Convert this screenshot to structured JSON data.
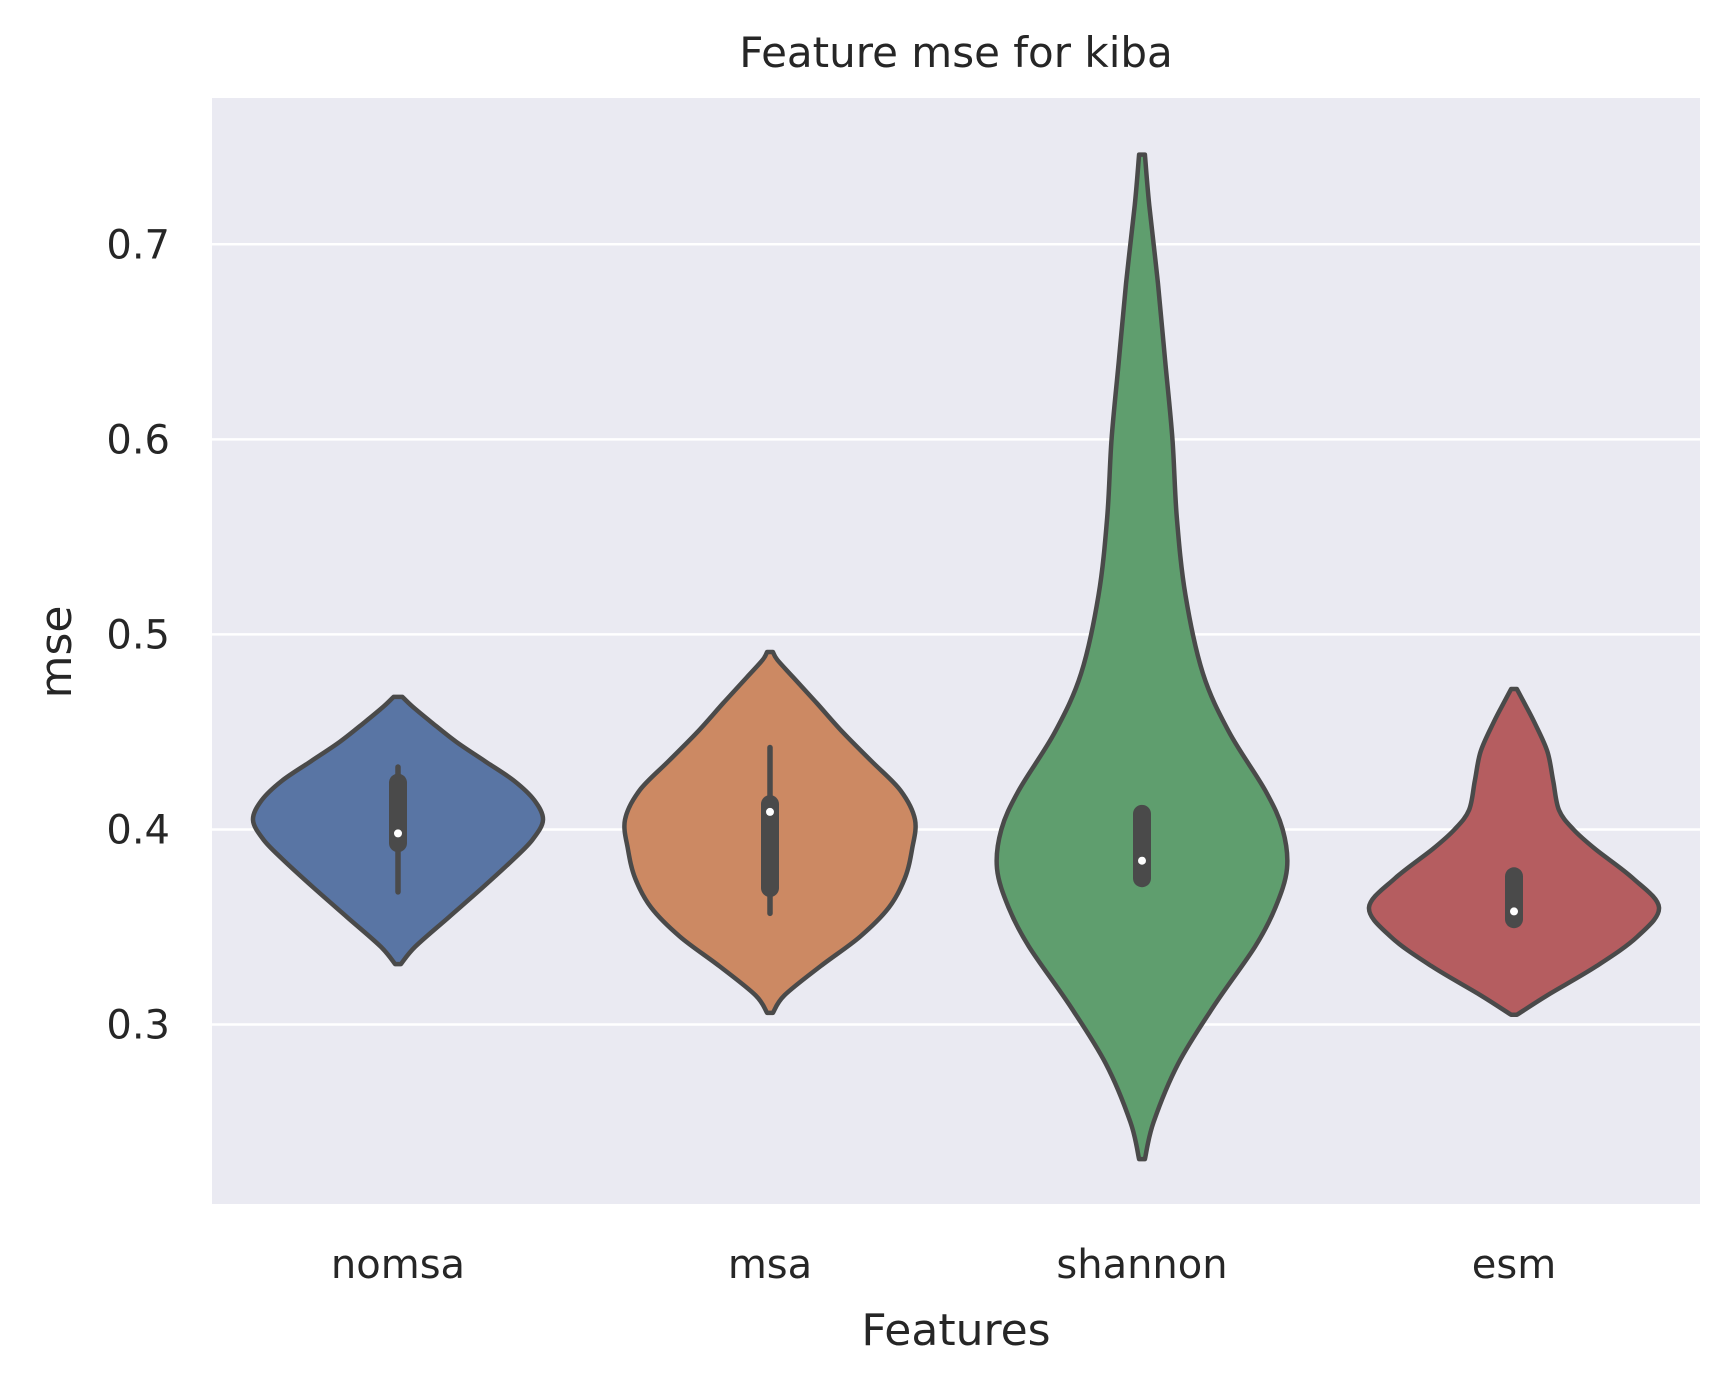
{
  "chart_data": {
    "type": "violin",
    "title": "Feature mse for kiba",
    "xlabel": "Features",
    "ylabel": "mse",
    "ylim": [
      0.208,
      0.775
    ],
    "yticks": [
      0.3,
      0.4,
      0.5,
      0.6,
      0.7
    ],
    "ytick_labels": [
      "0.3",
      "0.4",
      "0.5",
      "0.6",
      "0.7"
    ],
    "grid": true,
    "categories": [
      "nomsa",
      "msa",
      "shannon",
      "esm"
    ],
    "series": [
      {
        "category": "nomsa",
        "color": "#5975a4",
        "min": 0.331,
        "max": 0.468,
        "whisker_low": 0.368,
        "q1": 0.393,
        "median": 0.398,
        "q3": 0.424,
        "whisker_high": 0.432,
        "density": [
          [
            0.331,
            0.02
          ],
          [
            0.34,
            0.12
          ],
          [
            0.355,
            0.35
          ],
          [
            0.37,
            0.58
          ],
          [
            0.385,
            0.8
          ],
          [
            0.395,
            0.93
          ],
          [
            0.405,
            1.0
          ],
          [
            0.415,
            0.94
          ],
          [
            0.425,
            0.8
          ],
          [
            0.435,
            0.6
          ],
          [
            0.445,
            0.4
          ],
          [
            0.455,
            0.23
          ],
          [
            0.463,
            0.1
          ],
          [
            0.468,
            0.03
          ]
        ]
      },
      {
        "category": "msa",
        "color": "#cc8963",
        "min": 0.306,
        "max": 0.491,
        "whisker_low": 0.357,
        "q1": 0.37,
        "median": 0.409,
        "q3": 0.413,
        "whisker_high": 0.442,
        "density": [
          [
            0.306,
            0.02
          ],
          [
            0.315,
            0.1
          ],
          [
            0.33,
            0.35
          ],
          [
            0.345,
            0.62
          ],
          [
            0.36,
            0.82
          ],
          [
            0.375,
            0.93
          ],
          [
            0.39,
            0.98
          ],
          [
            0.405,
            1.0
          ],
          [
            0.42,
            0.9
          ],
          [
            0.435,
            0.7
          ],
          [
            0.45,
            0.5
          ],
          [
            0.465,
            0.32
          ],
          [
            0.478,
            0.16
          ],
          [
            0.487,
            0.05
          ],
          [
            0.491,
            0.02
          ]
        ]
      },
      {
        "category": "shannon",
        "color": "#5f9e6e",
        "min": 0.231,
        "max": 0.746,
        "whisker_low": 0.374,
        "q1": 0.375,
        "median": 0.384,
        "q3": 0.408,
        "whisker_high": 0.409,
        "density": [
          [
            0.231,
            0.02
          ],
          [
            0.25,
            0.08
          ],
          [
            0.28,
            0.25
          ],
          [
            0.31,
            0.5
          ],
          [
            0.34,
            0.78
          ],
          [
            0.36,
            0.92
          ],
          [
            0.38,
            1.0
          ],
          [
            0.4,
            0.97
          ],
          [
            0.42,
            0.85
          ],
          [
            0.45,
            0.6
          ],
          [
            0.48,
            0.42
          ],
          [
            0.52,
            0.3
          ],
          [
            0.56,
            0.24
          ],
          [
            0.6,
            0.21
          ],
          [
            0.64,
            0.16
          ],
          [
            0.68,
            0.11
          ],
          [
            0.72,
            0.05
          ],
          [
            0.746,
            0.02
          ]
        ]
      },
      {
        "category": "esm",
        "color": "#b55d60",
        "min": 0.305,
        "max": 0.472,
        "whisker_low": 0.351,
        "q1": 0.354,
        "median": 0.358,
        "q3": 0.376,
        "whisker_high": 0.377,
        "density": [
          [
            0.305,
            0.02
          ],
          [
            0.315,
            0.23
          ],
          [
            0.33,
            0.57
          ],
          [
            0.345,
            0.85
          ],
          [
            0.36,
            1.0
          ],
          [
            0.375,
            0.82
          ],
          [
            0.39,
            0.56
          ],
          [
            0.4,
            0.41
          ],
          [
            0.41,
            0.31
          ],
          [
            0.425,
            0.27
          ],
          [
            0.44,
            0.23
          ],
          [
            0.455,
            0.14
          ],
          [
            0.465,
            0.07
          ],
          [
            0.472,
            0.02
          ]
        ]
      }
    ]
  }
}
